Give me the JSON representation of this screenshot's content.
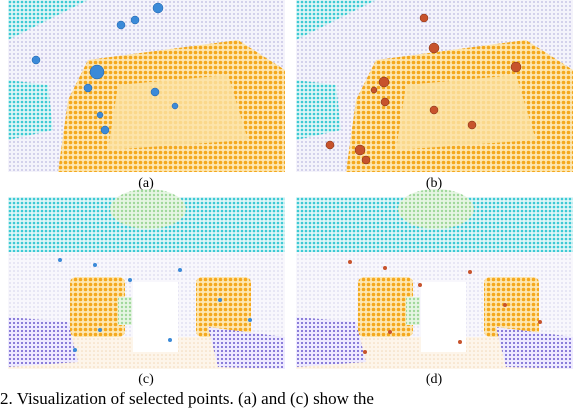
{
  "panels": [
    {
      "label": "(a)"
    },
    {
      "label": "(b)"
    },
    {
      "label": "(c)"
    },
    {
      "label": "(d)"
    }
  ],
  "caption": "2. Visualization of selected points. (a) and (c) show the"
}
